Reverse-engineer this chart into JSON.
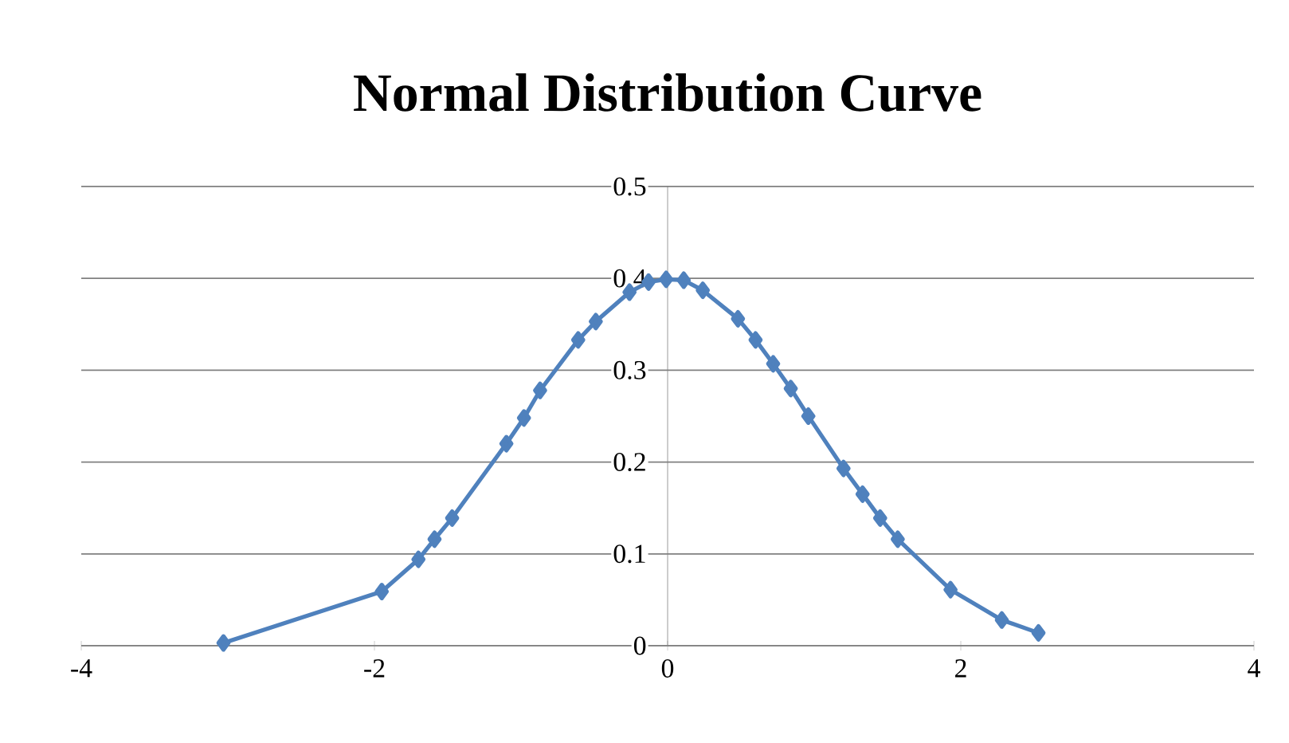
{
  "chart_data": {
    "type": "line",
    "title": "Normal Distribution Curve",
    "x": [
      -3.03,
      -1.95,
      -1.7,
      -1.59,
      -1.47,
      -1.1,
      -0.98,
      -0.87,
      -0.61,
      -0.49,
      -0.26,
      -0.13,
      -0.01,
      0.11,
      0.24,
      0.48,
      0.6,
      0.72,
      0.84,
      0.96,
      1.2,
      1.33,
      1.45,
      1.57,
      1.93,
      2.28,
      2.53
    ],
    "series": [
      {
        "color": "#4f81bd",
        "values": [
          0.003,
          0.059,
          0.094,
          0.116,
          0.139,
          0.22,
          0.248,
          0.278,
          0.333,
          0.353,
          0.385,
          0.396,
          0.399,
          0.398,
          0.387,
          0.356,
          0.333,
          0.307,
          0.28,
          0.25,
          0.193,
          0.165,
          0.139,
          0.116,
          0.061,
          0.028,
          0.014
        ]
      }
    ],
    "xlim": [
      -4,
      4
    ],
    "xticks": [
      -4,
      -2,
      0,
      2,
      4
    ],
    "ylim": [
      0,
      0.5
    ],
    "yticks": [
      0,
      0.1,
      0.2,
      0.3,
      0.4,
      0.5
    ],
    "grid": "y",
    "marker": "diamond",
    "line_style": "solid"
  }
}
